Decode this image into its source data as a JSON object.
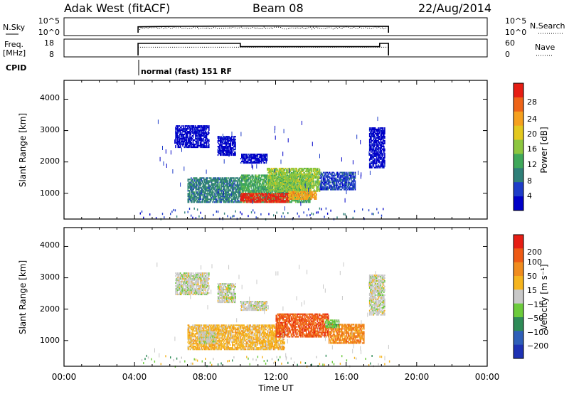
{
  "header": {
    "station": "Adak West (fitACF)",
    "beam": "Beam 08",
    "date": "22/Aug/2014"
  },
  "summary": {
    "nsky_label": "N.Sky",
    "nsky_ticks": [
      "10^5",
      "10^0"
    ],
    "nsearch_label": "N.Search",
    "nsearch_ticks": [
      "10^5",
      "10^0"
    ],
    "freq_label": "Freq.",
    "freq_unit": "[MHz]",
    "freq_ticks": [
      "18",
      "8"
    ],
    "nave_label": "Nave",
    "nave_ticks": [
      "60",
      "0"
    ],
    "cpid_label": "CPID",
    "cpid_text": "normal (fast) 151 RF"
  },
  "x_axis": {
    "label": "Time UT",
    "ticks": [
      "00:00",
      "04:00",
      "08:00",
      "12:00",
      "16:00",
      "20:00",
      "00:00"
    ]
  },
  "panels": [
    {
      "ylabel": "Slant Range [km]",
      "yticks": [
        "4000",
        "3000",
        "2000",
        "1000"
      ],
      "colorbar_label": "Power [dB]",
      "colorbar_ticks": [
        "28",
        "24",
        "20",
        "16",
        "12",
        "8",
        "4"
      ],
      "colors": [
        "#0000c8",
        "#1e3cc8",
        "#2f7f78",
        "#3fa85a",
        "#8cc63f",
        "#e3c81e",
        "#f5a01e",
        "#ee6418",
        "#e61e14"
      ]
    },
    {
      "ylabel": "Slant Range [km]",
      "yticks": [
        "4000",
        "3000",
        "2000",
        "1000"
      ],
      "colorbar_label": "Velocity [m s⁻¹]",
      "colorbar_ticks": [
        "200",
        "100",
        "50",
        "15",
        "−15",
        "−50",
        "−100",
        "−200"
      ],
      "colors": [
        "#1e32b4",
        "#2f5fb8",
        "#2e8b57",
        "#6ccb3c",
        "#c8c8c8",
        "#f5b41e",
        "#f08c1e",
        "#ee5a14",
        "#e61e14"
      ]
    }
  ],
  "chart_data": [
    {
      "type": "line",
      "name": "N.Sky / N.Search",
      "x_range_hours": [
        0,
        24
      ],
      "y_scale": "log",
      "ylim": [
        1,
        100000
      ],
      "series": [
        {
          "x": [
            4.2,
            4.2,
            6,
            8,
            10,
            12,
            14,
            16,
            18.4,
            18.4
          ],
          "y": [
            1,
            200,
            300,
            350,
            400,
            420,
            380,
            350,
            300,
            1
          ]
        }
      ]
    },
    {
      "type": "line",
      "name": "Freq / Nave",
      "x_range_hours": [
        0,
        24
      ],
      "ylim": [
        8,
        18
      ],
      "series": [
        {
          "x": [
            4.2,
            4.2,
            10,
            10,
            17.9,
            17.9,
            18.4,
            18.4
          ],
          "y": [
            8,
            16.5,
            16.5,
            14.2,
            14.2,
            16.5,
            16.5,
            8
          ]
        },
        {
          "x": [
            4.2,
            18.4
          ],
          "y": [
            13.8,
            13.8
          ]
        }
      ]
    },
    {
      "type": "heatmap",
      "name": "Power",
      "units": "dB",
      "x_range_hours": [
        0,
        24
      ],
      "ylim": [
        180,
        4600
      ],
      "blobs": [
        {
          "t0": 6.3,
          "t1": 8.2,
          "r0": 2450,
          "r1": 3150,
          "level": 0
        },
        {
          "t0": 8.7,
          "t1": 9.7,
          "r0": 2200,
          "r1": 2800,
          "level": 0
        },
        {
          "t0": 10.0,
          "t1": 11.5,
          "r0": 1950,
          "r1": 2250,
          "level": 0
        },
        {
          "t0": 7.0,
          "t1": 10.0,
          "r0": 700,
          "r1": 1500,
          "level": 2
        },
        {
          "t0": 10.0,
          "t1": 14.0,
          "r0": 700,
          "r1": 1600,
          "level": 3
        },
        {
          "t0": 11.5,
          "t1": 14.5,
          "r0": 1050,
          "r1": 1800,
          "level": 4
        },
        {
          "t0": 14.5,
          "t1": 16.5,
          "r0": 1100,
          "r1": 1650,
          "level": 1
        },
        {
          "t0": 10.0,
          "t1": 12.7,
          "r0": 700,
          "r1": 1000,
          "level": 8
        },
        {
          "t0": 12.7,
          "t1": 14.3,
          "r0": 800,
          "r1": 1050,
          "level": 6
        },
        {
          "t0": 17.3,
          "t1": 18.2,
          "r0": 1800,
          "r1": 3100,
          "level": 0
        }
      ]
    },
    {
      "type": "heatmap",
      "name": "Velocity",
      "units": "m/s",
      "x_range_hours": [
        0,
        24
      ],
      "ylim": [
        180,
        4600
      ],
      "blobs": [
        {
          "t0": 6.3,
          "t1": 8.2,
          "r0": 2450,
          "r1": 3150,
          "level": 4
        },
        {
          "t0": 8.7,
          "t1": 9.7,
          "r0": 2200,
          "r1": 2800,
          "level": 4
        },
        {
          "t0": 10.0,
          "t1": 11.5,
          "r0": 1950,
          "r1": 2250,
          "level": 4
        },
        {
          "t0": 7.0,
          "t1": 10.0,
          "r0": 700,
          "r1": 1500,
          "level": 5
        },
        {
          "t0": 10.0,
          "t1": 12.5,
          "r0": 700,
          "r1": 1500,
          "level": 5
        },
        {
          "t0": 12.0,
          "t1": 15.0,
          "r0": 1100,
          "r1": 1850,
          "level": 7
        },
        {
          "t0": 15.0,
          "t1": 17.0,
          "r0": 900,
          "r1": 1500,
          "level": 6
        },
        {
          "t0": 14.8,
          "t1": 15.6,
          "r0": 1400,
          "r1": 1650,
          "level": 3
        },
        {
          "t0": 7.6,
          "t1": 8.6,
          "r0": 900,
          "r1": 1300,
          "level": 4
        },
        {
          "t0": 17.3,
          "t1": 18.2,
          "r0": 1800,
          "r1": 3100,
          "level": 4
        }
      ]
    }
  ]
}
